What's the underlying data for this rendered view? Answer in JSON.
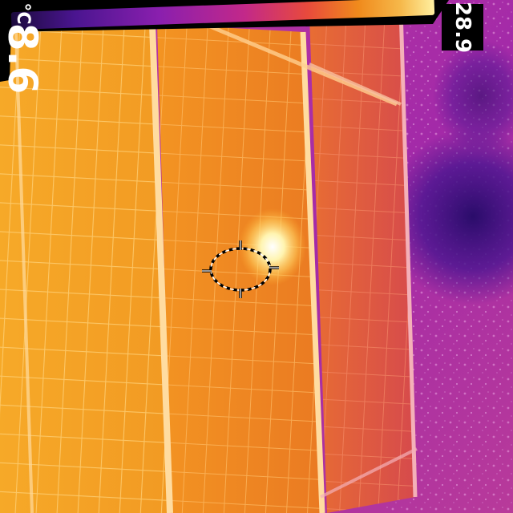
{
  "thermal_view": {
    "palette_colors": [
      "#1b0a3c",
      "#4a1590",
      "#8a1fae",
      "#c2288a",
      "#e84a3c",
      "#f08a1c",
      "#f6b84a",
      "#fff0a0",
      "#ffffff"
    ],
    "panel_colors": {
      "left": "#f29a23",
      "middle": "#ef8a1d",
      "right": "#e25b3f"
    },
    "background_color": "#c13aa0",
    "hotspot_color": "#fffbe0"
  },
  "scale": {
    "max_label": "28.9",
    "min_label_value": "8.6",
    "min_label_unit": "°C"
  },
  "crosshair": {
    "icon": "spot-meter-icon"
  }
}
